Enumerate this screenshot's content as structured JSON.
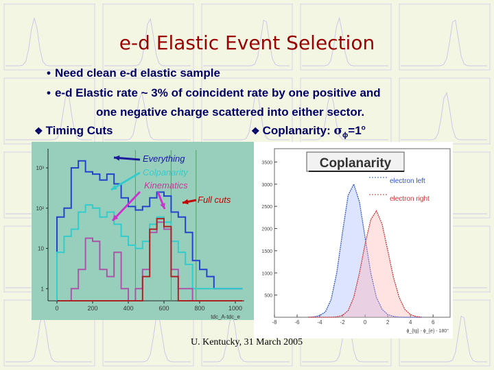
{
  "title": "e-d Elastic Event Selection",
  "bullets": [
    "Need clean e-d elastic sample",
    "e-d Elastic rate ~ 3% of coincident rate by one positive and",
    "one negative charge scattered into either sector."
  ],
  "subheads": {
    "timing": "Timing Cuts",
    "coplanarity_prefix": "Coplanarity: ",
    "coplanarity_sigma": "σ",
    "coplanarity_sub": "ϕ",
    "coplanarity_value": "=1",
    "coplanarity_sup": "o"
  },
  "annotations": {
    "everything": "Everything",
    "colpanarity": "Colpanarity",
    "kinematics": "Kinematics",
    "full_cuts": "Full cuts"
  },
  "footer": "U. Kentucky, 31 March 2005",
  "colors": {
    "everything": "#2244cc",
    "coplanarity": "#33cccc",
    "kinematics": "#aa55aa",
    "full_cuts": "#aa2222",
    "cut_lines": "#33bb33",
    "electron_left": "#3355cc",
    "electron_right": "#cc3333"
  },
  "chart_data": [
    {
      "type": "line",
      "xlabel": "tdc_A-tdc_e",
      "x_ticks": [
        "0",
        "200",
        "400",
        "600",
        "800",
        "1000"
      ],
      "y_ticks": [
        "1",
        "10",
        "10²",
        "10³"
      ],
      "xlim": [
        -50,
        1050
      ],
      "y_scale": "log",
      "ylim": [
        0.5,
        3000
      ],
      "cut_lines_x": [
        440,
        640,
        780
      ],
      "x": [
        0,
        40,
        80,
        120,
        160,
        200,
        240,
        280,
        320,
        360,
        400,
        440,
        480,
        520,
        560,
        600,
        640,
        680,
        720,
        760,
        800,
        840,
        880,
        920,
        960,
        1000
      ],
      "series": [
        {
          "name": "Everything",
          "values": [
            60,
            100,
            1000,
            1500,
            800,
            700,
            500,
            700,
            400,
            180,
            110,
            90,
            110,
            180,
            250,
            200,
            80,
            60,
            25,
            5,
            3,
            2,
            1,
            1,
            1,
            1
          ]
        },
        {
          "name": "Colpanarity",
          "values": [
            8,
            20,
            30,
            80,
            120,
            100,
            60,
            80,
            40,
            20,
            12,
            10,
            15,
            40,
            60,
            45,
            15,
            8,
            4,
            1,
            1,
            1,
            1,
            1,
            1,
            1
          ]
        },
        {
          "name": "Kinematics",
          "values": [
            0,
            0,
            1,
            3,
            18,
            15,
            3,
            2,
            8,
            1,
            0,
            1,
            3,
            25,
            45,
            30,
            3,
            1,
            1,
            0,
            0,
            0,
            0,
            0,
            0,
            0
          ]
        },
        {
          "name": "Full cuts",
          "values": [
            0,
            0,
            0,
            0,
            0,
            0,
            0,
            0,
            0,
            0,
            0,
            0,
            2,
            30,
            55,
            35,
            2,
            0,
            0,
            0,
            0,
            0,
            0,
            0,
            0,
            0
          ]
        }
      ]
    },
    {
      "type": "line",
      "title": "Coplanarity",
      "xlabel": "ϕ_{tg} - ϕ_{e} - 180°",
      "x_ticks": [
        "-8",
        "-6",
        "-4",
        "-2",
        "0",
        "2",
        "4",
        "6"
      ],
      "y_ticks": [
        "500",
        "1000",
        "1500",
        "2000",
        "2500",
        "3000",
        "3500"
      ],
      "xlim": [
        -8,
        7.5
      ],
      "ylim": [
        0,
        3800
      ],
      "x": [
        -5,
        -4.5,
        -4,
        -3.5,
        -3,
        -2.5,
        -2,
        -1.5,
        -1,
        -0.5,
        0,
        0.5,
        1,
        1.5,
        2,
        2.5,
        3,
        3.5,
        4,
        4.5,
        5
      ],
      "series": [
        {
          "name": "electron left",
          "values": [
            0,
            10,
            40,
            120,
            400,
            1000,
            1900,
            2750,
            3000,
            2600,
            1800,
            1000,
            450,
            180,
            60,
            20,
            5,
            0,
            0,
            0,
            0
          ]
        },
        {
          "name": "electron right",
          "values": [
            0,
            0,
            0,
            0,
            0,
            10,
            40,
            150,
            450,
            1000,
            1650,
            2200,
            2400,
            2100,
            1500,
            900,
            450,
            180,
            60,
            15,
            0
          ]
        }
      ]
    }
  ]
}
